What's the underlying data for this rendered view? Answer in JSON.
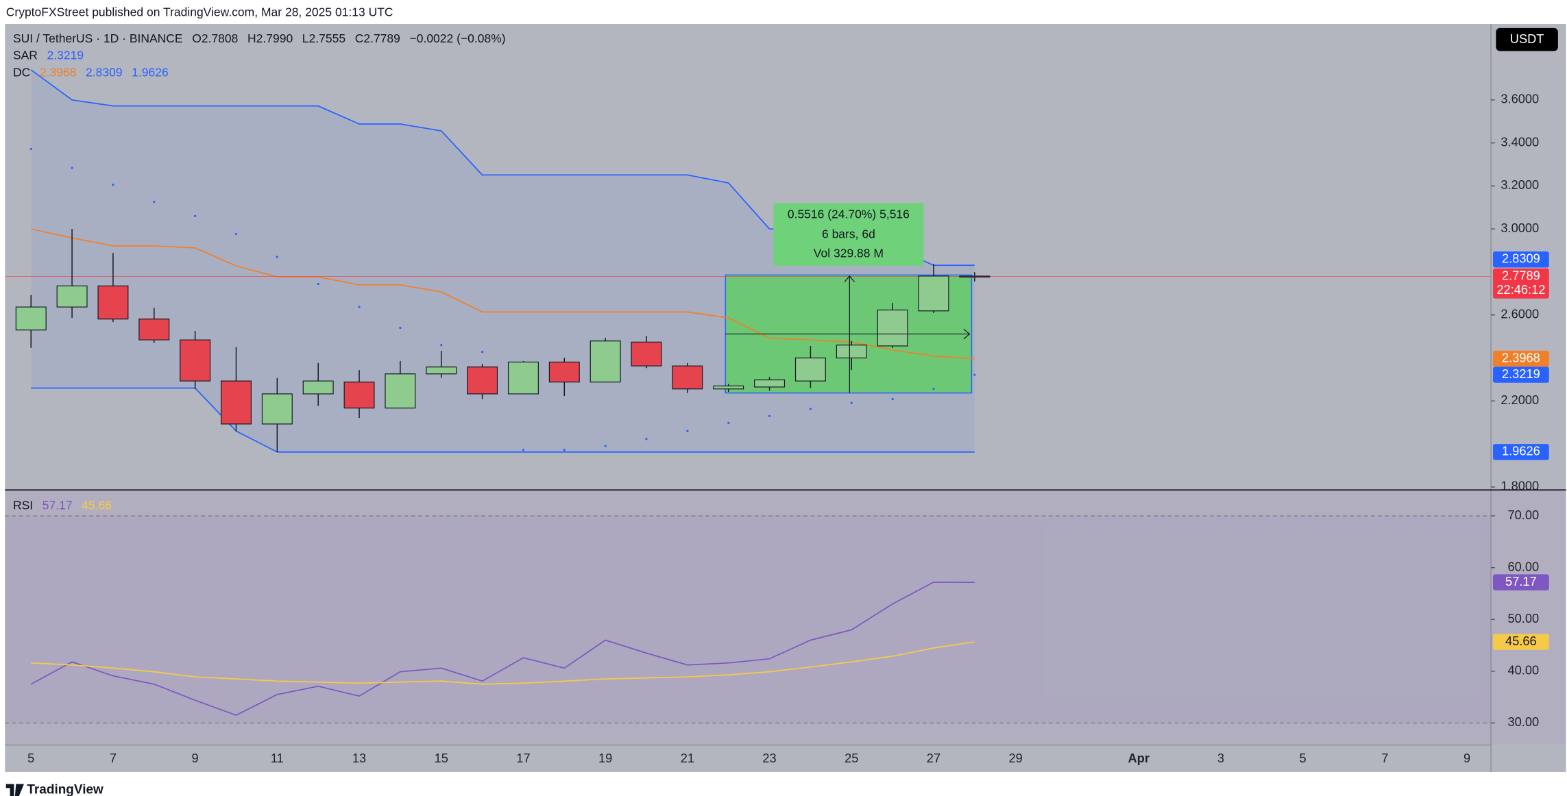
{
  "header": {
    "publisher": "CryptoFXStreet published on TradingView.com, Mar 28, 2025 01:13 UTC",
    "currency": "USDT",
    "brand": "TradingView"
  },
  "chart_data": [
    {
      "type": "candlestick",
      "legend": {
        "symbol": "SUI / TetherUS · 1D · BINANCE",
        "open": "O2.7808",
        "high": "H2.7990",
        "low": "L2.7555",
        "close": "C2.7789",
        "change": "−0.0022 (−0.08%)"
      },
      "open": [
        2.53,
        2.637,
        2.735,
        2.581,
        2.484,
        2.293,
        2.093,
        2.233,
        2.288,
        2.167,
        2.326,
        2.358,
        2.233,
        2.381,
        2.288,
        2.474,
        2.363,
        2.256,
        2.265,
        2.293,
        2.4,
        2.456,
        2.619,
        2.7808,
        null,
        null,
        null,
        null,
        null,
        null,
        null,
        null,
        null,
        null,
        null,
        null
      ],
      "high": [
        2.693,
        3.0,
        2.888,
        2.633,
        2.526,
        2.451,
        2.307,
        2.377,
        2.344,
        2.386,
        2.433,
        2.372,
        2.386,
        2.4,
        2.493,
        2.502,
        2.377,
        2.279,
        2.312,
        2.456,
        2.479,
        2.656,
        2.837,
        2.799,
        null,
        null,
        null,
        null,
        null,
        null,
        null,
        null,
        null,
        null,
        null,
        null
      ],
      "low": [
        2.447,
        2.586,
        2.567,
        2.47,
        2.256,
        2.06,
        1.9626,
        2.177,
        2.121,
        2.167,
        2.307,
        2.209,
        2.233,
        2.223,
        2.288,
        2.353,
        2.237,
        2.242,
        2.247,
        2.26,
        2.344,
        2.447,
        2.609,
        2.7555,
        null,
        null,
        null,
        null,
        null,
        null,
        null,
        null,
        null,
        null,
        null,
        null
      ],
      "close": [
        2.637,
        2.735,
        2.581,
        2.484,
        2.293,
        2.093,
        2.233,
        2.293,
        2.167,
        2.326,
        2.358,
        2.233,
        2.381,
        2.288,
        2.479,
        2.363,
        2.256,
        2.27,
        2.298,
        2.4,
        2.46,
        2.623,
        2.781,
        2.7789,
        null,
        null,
        null,
        null,
        null,
        null,
        null,
        null,
        null,
        null,
        null,
        null
      ],
      "up_color": "#8fcb8f",
      "down_color": "#e5434d",
      "ylim": [
        1.786,
        3.953
      ],
      "yticks": [
        {
          "value": 3.6,
          "label": "3.6000"
        },
        {
          "value": 3.4,
          "label": "3.4000"
        },
        {
          "value": 3.2,
          "label": "3.2000"
        },
        {
          "value": 3.0,
          "label": "3.0000"
        },
        {
          "value": 2.6,
          "label": "2.6000"
        },
        {
          "value": 2.2,
          "label": "2.2000"
        },
        {
          "value": 1.8,
          "label": "1.8000"
        }
      ],
      "countdown": "22:46:12",
      "indicators": [
        {
          "name": "SAR",
          "style": "dots",
          "color": "#2962ff",
          "values": [
            3.372,
            3.284,
            3.205,
            3.126,
            3.06,
            2.977,
            2.87,
            2.744,
            2.637,
            2.54,
            2.46,
            2.428,
            1.972,
            1.972,
            1.991,
            2.023,
            2.06,
            2.098,
            2.13,
            2.163,
            2.191,
            2.209,
            2.256,
            2.3219,
            null,
            null,
            null,
            null,
            null,
            null,
            null,
            null,
            null,
            null,
            null,
            null
          ]
        },
        {
          "name": "DC",
          "style": "channel",
          "lines": [
            {
              "color": "#f07f2a",
              "values": [
                3.0,
                2.958,
                2.921,
                2.921,
                2.912,
                2.828,
                2.777,
                2.777,
                2.74,
                2.74,
                2.707,
                2.614,
                2.614,
                2.614,
                2.614,
                2.614,
                2.614,
                2.586,
                2.493,
                2.484,
                2.474,
                2.437,
                2.409,
                2.3968,
                null,
                null,
                null,
                null,
                null,
                null,
                null,
                null,
                null,
                null,
                null,
                null
              ]
            },
            {
              "color": "#2962ff",
              "values": [
                3.74,
                3.6,
                3.572,
                3.572,
                3.572,
                3.572,
                3.572,
                3.572,
                3.488,
                3.488,
                3.456,
                3.251,
                3.251,
                3.251,
                3.251,
                3.251,
                3.251,
                3.214,
                3.0,
                3.0,
                3.0,
                2.916,
                2.8309,
                2.8309,
                null,
                null,
                null,
                null,
                null,
                null,
                null,
                null,
                null,
                null,
                null,
                null
              ]
            },
            {
              "color": "#2962ff",
              "values": [
                2.26,
                2.26,
                2.26,
                2.26,
                2.26,
                2.06,
                1.9626,
                1.9626,
                1.9626,
                1.9626,
                1.9626,
                1.9626,
                1.9626,
                1.9626,
                1.9626,
                1.9626,
                1.9626,
                1.9626,
                1.9626,
                1.9626,
                1.9626,
                1.9626,
                1.9626,
                1.9626,
                null,
                null,
                null,
                null,
                null,
                null,
                null,
                null,
                null,
                null,
                null,
                null
              ]
            }
          ]
        }
      ],
      "measure": {
        "change": "0.5516 (24.70%) 5,516",
        "bars": "6 bars, 6d",
        "volume": "Vol 329.88 M"
      }
    },
    {
      "type": "line",
      "legend": "RSI",
      "categories": [
        "5",
        null,
        "7",
        null,
        "9",
        null,
        "11",
        null,
        "13",
        null,
        "15",
        null,
        "17",
        null,
        "19",
        null,
        "21",
        null,
        "23",
        null,
        "25",
        null,
        "27",
        null,
        "29",
        null,
        null,
        "Apr",
        null,
        "3",
        null,
        "5",
        null,
        "7",
        null,
        "9"
      ],
      "series": [
        {
          "color": "#7e57c2",
          "values": [
            37.5,
            41.8,
            39.1,
            37.5,
            34.4,
            31.5,
            35.5,
            37.1,
            35.2,
            39.9,
            40.6,
            38.1,
            42.6,
            40.6,
            46.0,
            43.5,
            41.2,
            41.6,
            42.4,
            46.0,
            48.0,
            53.0,
            57.2,
            57.17,
            null,
            null,
            null,
            null,
            null,
            null,
            null,
            null,
            null,
            null,
            null,
            null
          ]
        },
        {
          "color": "#f7c948",
          "values": [
            41.6,
            41.2,
            40.6,
            39.9,
            38.9,
            38.5,
            38.1,
            37.9,
            37.7,
            37.9,
            38.1,
            37.5,
            37.7,
            38.1,
            38.5,
            38.7,
            38.9,
            39.3,
            39.9,
            40.8,
            41.8,
            42.9,
            44.5,
            45.66,
            null,
            null,
            null,
            null,
            null,
            null,
            null,
            null,
            null,
            null,
            null,
            null
          ]
        }
      ],
      "ylim": [
        25.75,
        75.0
      ],
      "yticks": [
        {
          "value": 70,
          "label": "70.00"
        },
        {
          "value": 60,
          "label": "60.00"
        },
        {
          "value": 50,
          "label": "50.00"
        },
        {
          "value": 40,
          "label": "40.00"
        },
        {
          "value": 30,
          "label": "30.00"
        }
      ],
      "band": [
        30,
        70
      ]
    }
  ]
}
